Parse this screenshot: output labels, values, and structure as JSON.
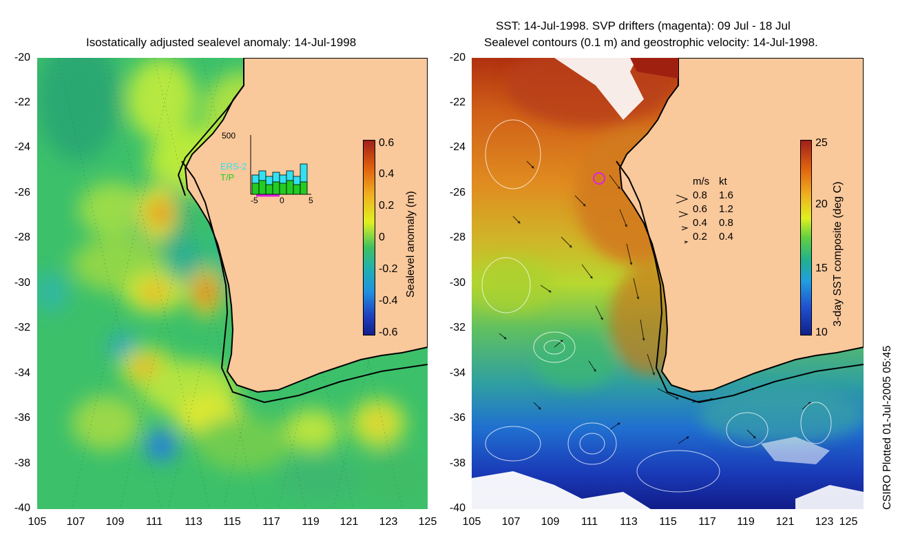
{
  "left_panel": {
    "title": "Isostatically adjusted sealevel anomaly: 14-Jul-1998",
    "colorbar": {
      "label": "Sealevel anomaly (m)",
      "ticks": [
        "0.6",
        "0.4",
        "0.2",
        "0",
        "-0.2",
        "-0.4",
        "-0.6"
      ]
    },
    "inset": {
      "y_max_label": "500",
      "series": [
        "ERS-2",
        "T/P"
      ],
      "x_ticks": [
        "-5",
        "0",
        "5"
      ],
      "colors": {
        "ERS-2": "#33e0f0",
        "T/P": "#22cc22",
        "window": "#e020e0"
      }
    }
  },
  "right_panel": {
    "title_line1": "SST: 14-Jul-1998. SVP drifters (magenta): 09 Jul - 18 Jul",
    "title_line2": "Sealevel contours (0.1 m) and geostrophic velocity: 14-Jul-1998.",
    "colorbar": {
      "label": "3-day SST composite (deg C)",
      "ticks": [
        "25",
        "20",
        "15",
        "10"
      ]
    },
    "velocity_legend": {
      "header_ms": "m/s",
      "header_kt": "kt",
      "rows": [
        {
          "ms": "0.8",
          "kt": "1.6"
        },
        {
          "ms": "0.6",
          "kt": "1.2"
        },
        {
          "ms": "0.4",
          "kt": "0.8"
        },
        {
          "ms": "0.2",
          "kt": "0.4"
        }
      ]
    }
  },
  "axes": {
    "y_ticks": [
      "-20",
      "-22",
      "-24",
      "-26",
      "-28",
      "-30",
      "-32",
      "-34",
      "-36",
      "-38",
      "-40"
    ],
    "x_ticks": [
      "105",
      "107",
      "109",
      "111",
      "113",
      "115",
      "117",
      "119",
      "121",
      "123",
      "125"
    ]
  },
  "credit": "CSIRO Plotted 01-Jul-2005 05:45",
  "colors": {
    "land": "#f9c89b",
    "coast": "#000000"
  }
}
